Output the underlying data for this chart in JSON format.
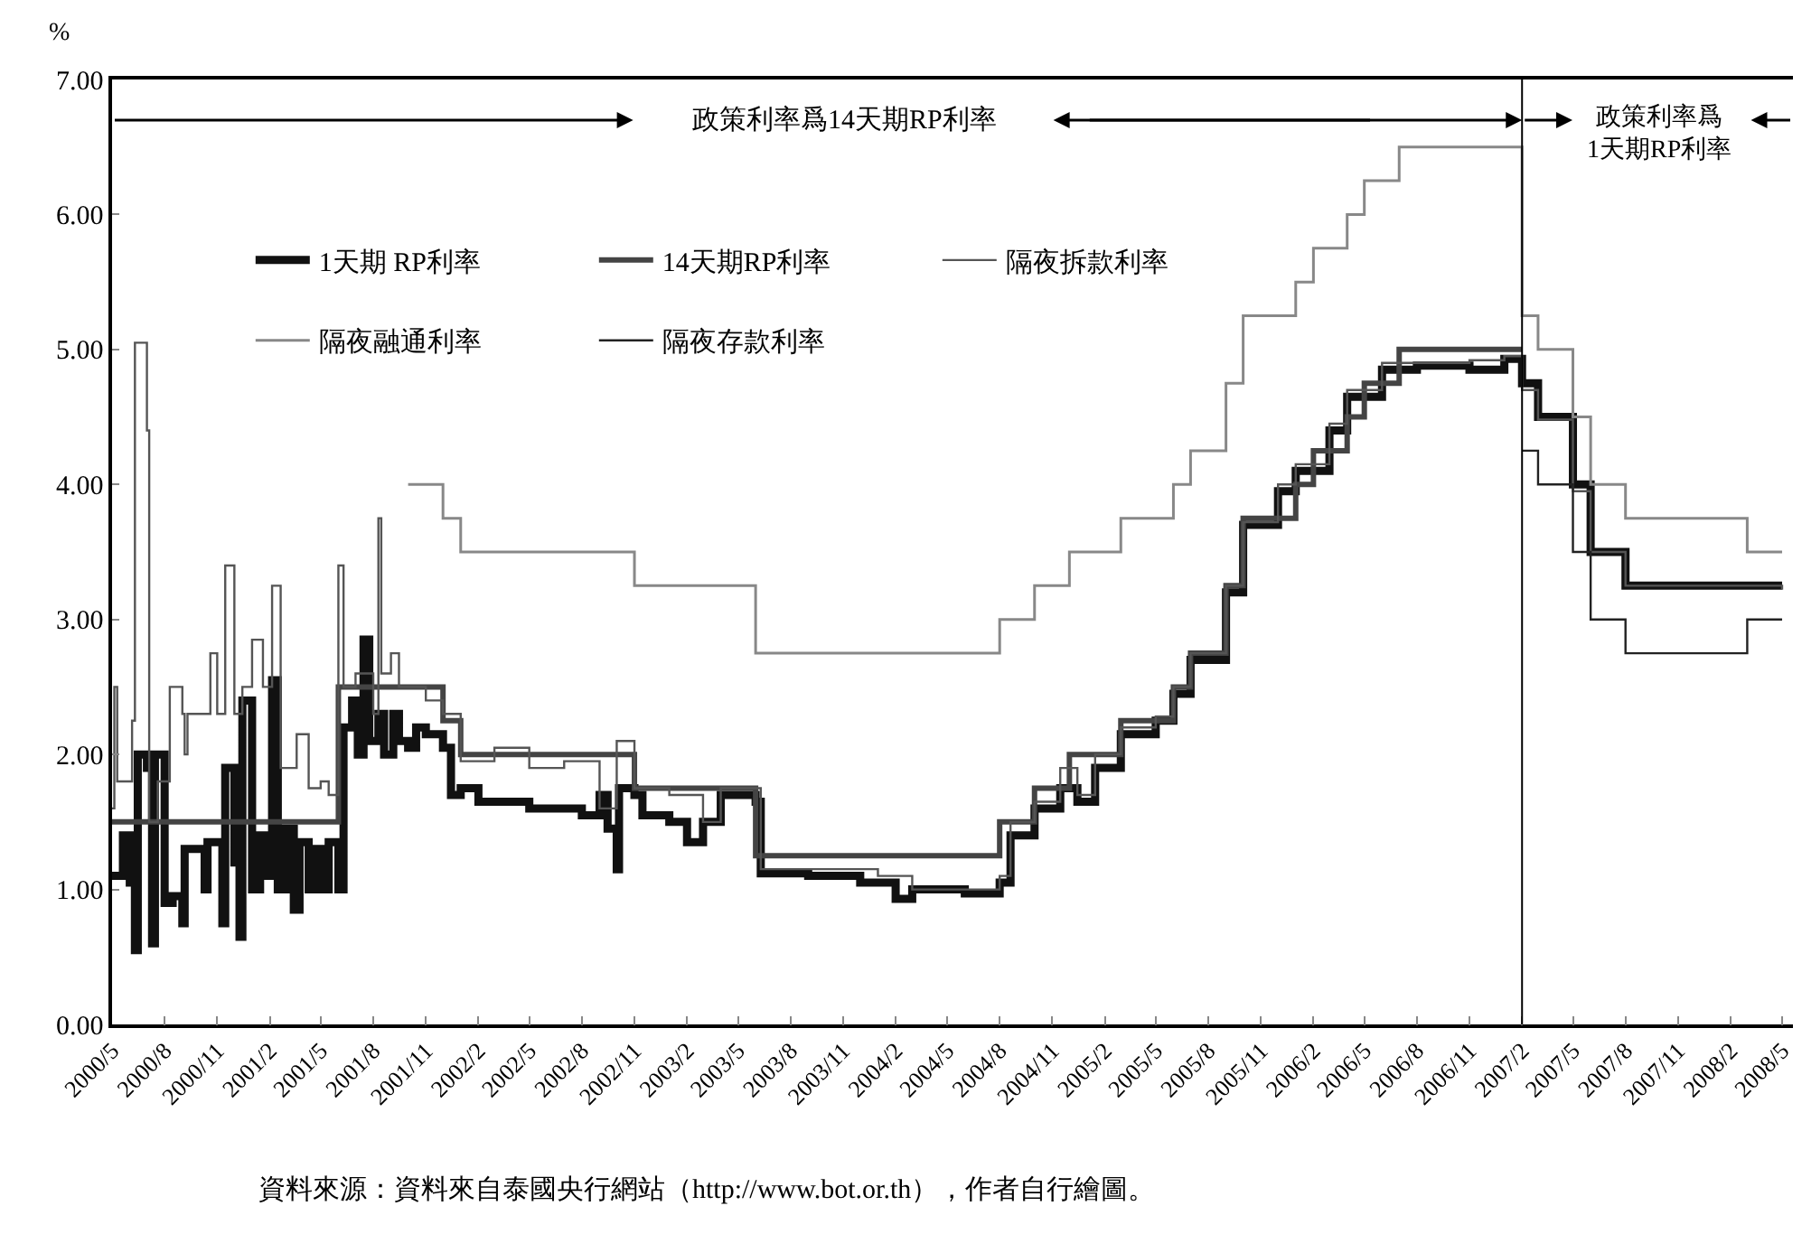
{
  "chart_data": {
    "type": "step",
    "ylabel": "%",
    "xlim": [
      "2000-05-01",
      "2008-05-20"
    ],
    "ylim": [
      0,
      7
    ],
    "yticks": [
      {
        "value": 0,
        "label": "0.00"
      },
      {
        "value": 1,
        "label": "1.00"
      },
      {
        "value": 2,
        "label": "2.00"
      },
      {
        "value": 3,
        "label": "3.00"
      },
      {
        "value": 4,
        "label": "4.00"
      },
      {
        "value": 5,
        "label": "5.00"
      },
      {
        "value": 6,
        "label": "6.00"
      },
      {
        "value": 7,
        "label": "7.00"
      }
    ],
    "xticks": [
      {
        "value": "2000-05-01",
        "label": "2000/5"
      },
      {
        "value": "2000-08-01",
        "label": "2000/8"
      },
      {
        "value": "2000-11-01",
        "label": "2000/11"
      },
      {
        "value": "2001-02-01",
        "label": "2001/2"
      },
      {
        "value": "2001-05-01",
        "label": "2001/5"
      },
      {
        "value": "2001-08-01",
        "label": "2001/8"
      },
      {
        "value": "2001-11-01",
        "label": "2001/11"
      },
      {
        "value": "2002-02-01",
        "label": "2002/2"
      },
      {
        "value": "2002-05-01",
        "label": "2002/5"
      },
      {
        "value": "2002-08-01",
        "label": "2002/8"
      },
      {
        "value": "2002-11-01",
        "label": "2002/11"
      },
      {
        "value": "2003-02-01",
        "label": "2003/2"
      },
      {
        "value": "2003-05-01",
        "label": "2003/5"
      },
      {
        "value": "2003-08-01",
        "label": "2003/8"
      },
      {
        "value": "2003-11-01",
        "label": "2003/11"
      },
      {
        "value": "2004-02-01",
        "label": "2004/2"
      },
      {
        "value": "2004-05-01",
        "label": "2004/5"
      },
      {
        "value": "2004-08-01",
        "label": "2004/8"
      },
      {
        "value": "2004-11-01",
        "label": "2004/11"
      },
      {
        "value": "2005-02-01",
        "label": "2005/2"
      },
      {
        "value": "2005-05-01",
        "label": "2005/5"
      },
      {
        "value": "2005-08-01",
        "label": "2005/8"
      },
      {
        "value": "2005-11-01",
        "label": "2005/11"
      },
      {
        "value": "2006-02-01",
        "label": "2006/2"
      },
      {
        "value": "2006-05-01",
        "label": "2006/5"
      },
      {
        "value": "2006-08-01",
        "label": "2006/8"
      },
      {
        "value": "2006-11-01",
        "label": "2006/11"
      },
      {
        "value": "2007-02-01",
        "label": "2007/2"
      },
      {
        "value": "2007-05-01",
        "label": "2007/5"
      },
      {
        "value": "2007-08-01",
        "label": "2007/8"
      },
      {
        "value": "2007-11-01",
        "label": "2007/11"
      },
      {
        "value": "2008-02-01",
        "label": "2008/2"
      },
      {
        "value": "2008-05-01",
        "label": "2008/5"
      }
    ],
    "grid": false,
    "legend": "top left",
    "marker": "none",
    "ref_lines": [
      {
        "axis": "x",
        "value": "2007-02-01",
        "color": "#000000"
      }
    ],
    "annotations": [
      "政策利率爲14天期RP利率",
      "政策利率爲\n1天期RP利率",
      "資料來源：資料來自泰國央行網站（http://www.bot.or.th），作者自行繪圖。"
    ],
    "series": [
      {
        "name": "1天期 RP利率",
        "color": "#111111",
        "x": [
          "2000-05-01",
          "2000-05-20",
          "2000-06-01",
          "2000-06-10",
          "2000-06-15",
          "2000-07-01",
          "2000-07-10",
          "2000-07-15",
          "2000-08-01",
          "2000-08-15",
          "2000-09-01",
          "2000-09-05",
          "2000-10-01",
          "2000-10-10",
          "2000-10-15",
          "2000-11-10",
          "2000-11-15",
          "2000-12-01",
          "2000-12-10",
          "2000-12-15",
          "2001-01-01",
          "2001-01-15",
          "2001-01-25",
          "2001-02-05",
          "2001-02-15",
          "2001-03-01",
          "2001-03-15",
          "2001-03-25",
          "2001-04-10",
          "2001-04-20",
          "2001-05-01",
          "2001-05-15",
          "2001-06-01",
          "2001-06-10",
          "2001-06-25",
          "2001-07-05",
          "2001-07-15",
          "2001-07-25",
          "2001-08-10",
          "2001-08-20",
          "2001-09-05",
          "2001-09-15",
          "2001-10-01",
          "2001-10-15",
          "2001-11-01",
          "2001-12-01",
          "2001-12-15",
          "2002-01-01",
          "2002-02-01",
          "2002-03-01",
          "2002-05-01",
          "2002-08-01",
          "2002-09-01",
          "2002-09-15",
          "2002-10-01",
          "2002-10-05",
          "2002-11-01",
          "2002-11-15",
          "2003-01-01",
          "2003-02-01",
          "2003-03-01",
          "2003-04-01",
          "2003-05-15",
          "2003-06-01",
          "2003-06-10",
          "2003-09-01",
          "2003-12-01",
          "2004-02-01",
          "2004-03-01",
          "2004-06-01",
          "2004-08-01",
          "2004-08-20",
          "2004-10-01",
          "2004-11-15",
          "2004-12-15",
          "2005-01-15",
          "2005-03-01",
          "2005-05-01",
          "2005-06-01",
          "2005-07-01",
          "2005-09-01",
          "2005-10-01",
          "2005-12-01",
          "2006-01-01",
          "2006-03-01",
          "2006-04-01",
          "2006-06-01",
          "2006-08-01",
          "2006-11-01",
          "2007-01-01",
          "2007-02-01",
          "2007-03-01",
          "2007-05-01",
          "2007-06-01",
          "2007-08-01",
          "2008-05-01"
        ],
        "values": [
          1.1,
          1.4,
          1.05,
          0.55,
          2.0,
          1.9,
          0.6,
          2.0,
          0.9,
          0.95,
          0.75,
          1.3,
          1.3,
          1.0,
          1.35,
          0.75,
          1.9,
          1.2,
          0.65,
          2.4,
          1.0,
          1.4,
          1.1,
          2.55,
          1.0,
          1.45,
          0.85,
          1.35,
          1.0,
          1.3,
          1.0,
          1.35,
          1.0,
          2.2,
          2.4,
          2.0,
          2.85,
          2.1,
          2.3,
          2.0,
          2.3,
          2.1,
          2.05,
          2.2,
          2.15,
          2.05,
          1.7,
          1.75,
          1.65,
          1.65,
          1.6,
          1.55,
          1.7,
          1.45,
          1.15,
          1.75,
          1.7,
          1.55,
          1.5,
          1.35,
          1.5,
          1.7,
          1.7,
          1.65,
          1.12,
          1.1,
          1.05,
          0.93,
          1.0,
          0.97,
          1.05,
          1.4,
          1.6,
          1.75,
          1.65,
          1.9,
          2.15,
          2.25,
          2.45,
          2.7,
          3.2,
          3.7,
          3.95,
          4.1,
          4.4,
          4.65,
          4.85,
          4.88,
          4.85,
          4.93,
          4.75,
          4.5,
          4.0,
          3.5,
          3.25,
          3.25
        ]
      },
      {
        "name": "14天期RP利率",
        "color": "#444444",
        "x": [
          "2000-05-01",
          "2001-06-01",
          "2001-12-01",
          "2002-01-01",
          "2002-11-01",
          "2003-06-01",
          "2004-08-01",
          "2004-10-01",
          "2004-12-01",
          "2005-03-01",
          "2005-06-01",
          "2005-07-01",
          "2005-09-01",
          "2005-10-01",
          "2006-01-01",
          "2006-02-01",
          "2006-04-01",
          "2006-05-01",
          "2006-07-01",
          "2007-02-01"
        ],
        "values": [
          1.5,
          2.5,
          2.25,
          2.0,
          1.75,
          1.25,
          1.5,
          1.75,
          2.0,
          2.25,
          2.5,
          2.75,
          3.25,
          3.75,
          4.0,
          4.25,
          4.5,
          4.75,
          5.0,
          5.0
        ]
      },
      {
        "name": "隔夜拆款利率",
        "color": "#555555",
        "x": [
          "2000-05-01",
          "2000-05-05",
          "2000-05-10",
          "2000-06-05",
          "2000-06-10",
          "2000-07-01",
          "2000-07-05",
          "2000-07-20",
          "2000-08-10",
          "2000-09-01",
          "2000-09-05",
          "2000-09-10",
          "2000-10-15",
          "2000-10-20",
          "2000-11-01",
          "2000-11-15",
          "2000-12-01",
          "2000-12-15",
          "2001-01-01",
          "2001-01-20",
          "2001-02-05",
          "2001-02-20",
          "2001-03-15",
          "2001-03-20",
          "2001-04-10",
          "2001-05-01",
          "2001-05-15",
          "2001-06-01",
          "2001-06-10",
          "2001-07-01",
          "2001-08-01",
          "2001-08-10",
          "2001-08-15",
          "2001-09-01",
          "2001-09-15",
          "2001-11-01",
          "2001-12-01",
          "2002-01-01",
          "2002-03-01",
          "2002-05-01",
          "2002-07-01",
          "2002-09-01",
          "2002-10-01",
          "2002-11-01",
          "2003-01-01",
          "2003-03-01",
          "2003-04-01",
          "2003-06-01",
          "2003-06-10",
          "2003-10-01",
          "2004-01-01",
          "2004-03-01",
          "2004-06-01",
          "2004-08-01",
          "2004-08-20",
          "2004-10-01",
          "2004-11-15",
          "2004-12-15",
          "2005-01-15",
          "2005-03-01",
          "2005-05-01",
          "2005-06-01",
          "2005-07-01",
          "2005-09-01",
          "2005-10-01",
          "2005-12-01",
          "2006-01-01",
          "2006-03-01",
          "2006-04-01",
          "2006-06-01",
          "2006-11-01",
          "2007-01-01",
          "2007-02-01",
          "2007-03-01",
          "2007-05-01",
          "2007-06-01",
          "2007-08-01",
          "2008-05-01"
        ],
        "values": [
          1.6,
          2.5,
          1.8,
          2.25,
          5.05,
          4.4,
          1.5,
          1.8,
          2.5,
          2.3,
          2.0,
          2.3,
          2.3,
          2.75,
          2.3,
          3.4,
          2.3,
          2.5,
          2.85,
          2.5,
          3.25,
          1.9,
          1.9,
          2.15,
          1.75,
          1.8,
          1.7,
          3.4,
          2.5,
          2.6,
          2.3,
          3.75,
          2.6,
          2.75,
          2.5,
          2.4,
          2.3,
          1.95,
          2.05,
          1.9,
          1.95,
          1.6,
          2.1,
          1.75,
          1.7,
          1.5,
          1.75,
          1.75,
          1.15,
          1.15,
          1.1,
          1.0,
          1.0,
          1.1,
          1.5,
          1.65,
          1.9,
          1.7,
          2.0,
          2.2,
          2.28,
          2.5,
          2.75,
          3.25,
          3.72,
          4.0,
          4.15,
          4.45,
          4.7,
          4.9,
          4.92,
          4.95,
          4.7,
          4.48,
          3.95,
          3.5,
          3.25,
          3.22
        ]
      },
      {
        "name": "隔夜融通利率",
        "color": "#888888",
        "x": [
          "2001-10-01",
          "2001-12-01",
          "2002-01-01",
          "2002-11-01",
          "2003-06-01",
          "2004-08-01",
          "2004-10-01",
          "2004-12-01",
          "2005-03-01",
          "2005-06-01",
          "2005-07-01",
          "2005-09-01",
          "2005-10-01",
          "2006-01-01",
          "2006-02-01",
          "2006-04-01",
          "2006-05-01",
          "2006-07-01",
          "2007-02-01",
          "2007-03-01",
          "2007-05-01",
          "2007-06-01",
          "2007-08-01",
          "2008-03-01",
          "2008-05-01"
        ],
        "values": [
          4.0,
          3.75,
          3.5,
          3.25,
          2.75,
          3.0,
          3.25,
          3.5,
          3.75,
          4.0,
          4.25,
          4.75,
          5.25,
          5.5,
          5.75,
          6.0,
          6.25,
          6.5,
          5.25,
          5.0,
          4.5,
          4.0,
          3.75,
          3.5,
          3.5
        ]
      },
      {
        "name": "隔夜存款利率",
        "color": "#222222",
        "x": [
          "2007-02-01",
          "2007-03-01",
          "2007-05-01",
          "2007-06-01",
          "2007-08-01",
          "2008-03-01",
          "2008-05-01"
        ],
        "values": [
          4.25,
          4.0,
          3.5,
          3.0,
          2.75,
          3.0,
          3.0
        ]
      }
    ]
  }
}
